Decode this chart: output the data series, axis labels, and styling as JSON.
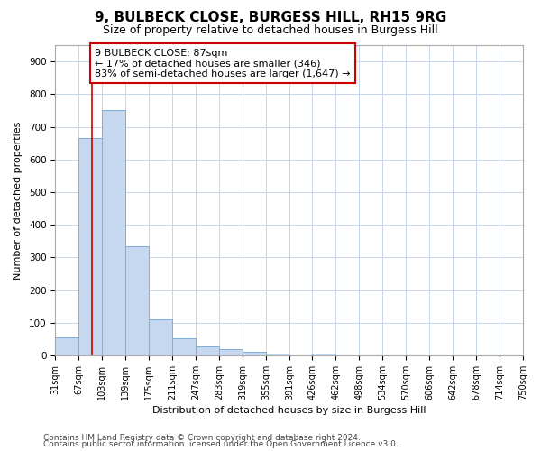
{
  "title1": "9, BULBECK CLOSE, BURGESS HILL, RH15 9RG",
  "title2": "Size of property relative to detached houses in Burgess Hill",
  "xlabel": "Distribution of detached houses by size in Burgess Hill",
  "ylabel": "Number of detached properties",
  "footnote1": "Contains HM Land Registry data © Crown copyright and database right 2024.",
  "footnote2": "Contains public sector information licensed under the Open Government Licence v3.0.",
  "bar_edges": [
    31,
    67,
    103,
    139,
    175,
    211,
    247,
    283,
    319,
    355,
    391,
    426,
    462,
    498,
    534,
    570,
    606,
    642,
    678,
    714,
    750
  ],
  "bar_heights": [
    55,
    665,
    750,
    335,
    110,
    52,
    28,
    20,
    10,
    5,
    0,
    5,
    0,
    0,
    0,
    0,
    0,
    0,
    0,
    0
  ],
  "bar_color": "#c5d8f0",
  "bar_edgecolor": "#7dafd8",
  "grid_color": "#c8d4e8",
  "background_color": "#ffffff",
  "plot_bg_color": "#ffffff",
  "vline_x": 87,
  "vline_color": "#cc0000",
  "annotation_text": "9 BULBECK CLOSE: 87sqm\n← 17% of detached houses are smaller (346)\n83% of semi-detached houses are larger (1,647) →",
  "annotation_box_facecolor": "#ffffff",
  "annotation_box_edgecolor": "#cc0000",
  "ylim": [
    0,
    950
  ],
  "yticks": [
    0,
    100,
    200,
    300,
    400,
    500,
    600,
    700,
    800,
    900
  ],
  "xlim_left": 31,
  "xlim_right": 750,
  "tick_labels": [
    "31sqm",
    "67sqm",
    "103sqm",
    "139sqm",
    "175sqm",
    "211sqm",
    "247sqm",
    "283sqm",
    "319sqm",
    "355sqm",
    "391sqm",
    "426sqm",
    "462sqm",
    "498sqm",
    "534sqm",
    "570sqm",
    "606sqm",
    "642sqm",
    "678sqm",
    "714sqm",
    "750sqm"
  ],
  "title1_fontsize": 11,
  "title2_fontsize": 9,
  "axis_label_fontsize": 8,
  "tick_fontsize": 7,
  "footnote_fontsize": 6.5
}
